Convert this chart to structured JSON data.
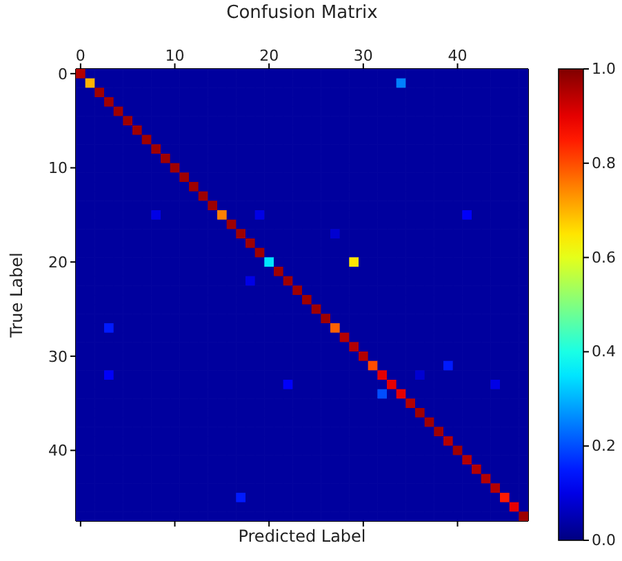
{
  "chart_data": {
    "type": "heatmap",
    "title": "Confusion Matrix",
    "xlabel": "Predicted Label",
    "ylabel": "True Label",
    "categories": [
      "0",
      null,
      null,
      null,
      null,
      null,
      null,
      null,
      null,
      null,
      "10",
      null,
      null,
      null,
      null,
      null,
      null,
      null,
      null,
      null,
      "20",
      null,
      null,
      null,
      null,
      null,
      null,
      null,
      null,
      null,
      "30",
      null,
      null,
      null,
      null,
      null,
      null,
      null,
      null,
      null,
      "40",
      null,
      null,
      null,
      null,
      null,
      null,
      null
    ],
    "y_categories": [
      "0",
      null,
      null,
      null,
      null,
      null,
      null,
      null,
      null,
      null,
      "10",
      null,
      null,
      null,
      null,
      null,
      null,
      null,
      null,
      null,
      "20",
      null,
      null,
      null,
      null,
      null,
      null,
      null,
      null,
      null,
      "30",
      null,
      null,
      null,
      null,
      null,
      null,
      null,
      null,
      null,
      "40",
      null,
      null,
      null,
      null,
      null,
      null,
      null
    ],
    "clim": [
      0,
      1
    ],
    "cticks": [
      {
        "value": 0,
        "label": "0.0"
      },
      {
        "value": 0.2,
        "label": "0.2"
      },
      {
        "value": 0.4,
        "label": "0.4"
      },
      {
        "value": 0.6,
        "label": "0.6"
      },
      {
        "value": 0.8,
        "label": "0.8"
      },
      {
        "value": 1,
        "label": "1.0"
      }
    ],
    "cells": [
      [
        0.95,
        0.03,
        0.03,
        0.03,
        0.03,
        0.03,
        0.03,
        0.03,
        0.03,
        0.03,
        0.03,
        0.03,
        0.03,
        0.03,
        0.03,
        0.03,
        0.03,
        0.03,
        0.03,
        0.03,
        0.03,
        0.03,
        0.03,
        0.03,
        0.03,
        0.03,
        0.03,
        0.03,
        0.03,
        0.03,
        0.03,
        0.03,
        0.03,
        0.03,
        0.03,
        0.03,
        0.03,
        0.03,
        0.03,
        0.03,
        0.03,
        0.03,
        0.03,
        0.03,
        0.03,
        0.03,
        0.03,
        0.03
      ],
      [
        0.03,
        0.7,
        0.03,
        0.03,
        0.03,
        0.03,
        0.03,
        0.03,
        0.03,
        0.03,
        0.03,
        0.03,
        0.03,
        0.03,
        0.03,
        0.03,
        0.03,
        0.03,
        0.03,
        0.03,
        0.03,
        0.03,
        0.03,
        0.03,
        0.03,
        0.03,
        0.03,
        0.03,
        0.03,
        0.03,
        0.03,
        0.03,
        0.03,
        0.03,
        0.25,
        0.03,
        0.03,
        0.03,
        0.03,
        0.03,
        0.03,
        0.03,
        0.03,
        0.03,
        0.03,
        0.03,
        0.03,
        0.03
      ],
      [
        0.03,
        0.03,
        0.97,
        0.03,
        0.03,
        0.03,
        0.03,
        0.03,
        0.03,
        0.03,
        0.03,
        0.03,
        0.03,
        0.03,
        0.03,
        0.03,
        0.03,
        0.03,
        0.03,
        0.03,
        0.03,
        0.03,
        0.03,
        0.03,
        0.03,
        0.03,
        0.03,
        0.03,
        0.03,
        0.03,
        0.03,
        0.03,
        0.03,
        0.03,
        0.03,
        0.03,
        0.03,
        0.03,
        0.03,
        0.03,
        0.03,
        0.03,
        0.03,
        0.03,
        0.03,
        0.03,
        0.03,
        0.03
      ],
      [
        0.03,
        0.03,
        0.03,
        0.97,
        0.03,
        0.03,
        0.03,
        0.03,
        0.03,
        0.03,
        0.03,
        0.03,
        0.03,
        0.03,
        0.03,
        0.03,
        0.03,
        0.03,
        0.03,
        0.03,
        0.03,
        0.03,
        0.03,
        0.03,
        0.03,
        0.03,
        0.03,
        0.03,
        0.03,
        0.03,
        0.03,
        0.03,
        0.03,
        0.03,
        0.03,
        0.03,
        0.03,
        0.03,
        0.03,
        0.03,
        0.03,
        0.03,
        0.03,
        0.03,
        0.03,
        0.03,
        0.03,
        0.03
      ],
      [
        0.03,
        0.03,
        0.03,
        0.03,
        0.97,
        0.03,
        0.03,
        0.03,
        0.03,
        0.03,
        0.03,
        0.03,
        0.03,
        0.03,
        0.03,
        0.03,
        0.03,
        0.03,
        0.03,
        0.03,
        0.03,
        0.03,
        0.03,
        0.03,
        0.03,
        0.03,
        0.03,
        0.03,
        0.03,
        0.03,
        0.03,
        0.03,
        0.03,
        0.03,
        0.03,
        0.03,
        0.03,
        0.03,
        0.03,
        0.03,
        0.03,
        0.03,
        0.03,
        0.03,
        0.03,
        0.03,
        0.03,
        0.03
      ],
      [
        0.03,
        0.03,
        0.03,
        0.03,
        0.03,
        0.97,
        0.03,
        0.03,
        0.03,
        0.03,
        0.03,
        0.03,
        0.03,
        0.03,
        0.03,
        0.03,
        0.03,
        0.03,
        0.03,
        0.03,
        0.03,
        0.03,
        0.03,
        0.03,
        0.03,
        0.03,
        0.03,
        0.03,
        0.03,
        0.03,
        0.03,
        0.03,
        0.03,
        0.03,
        0.03,
        0.03,
        0.03,
        0.03,
        0.03,
        0.03,
        0.03,
        0.03,
        0.03,
        0.03,
        0.03,
        0.03,
        0.03,
        0.03
      ],
      [
        0.03,
        0.03,
        0.03,
        0.03,
        0.03,
        0.03,
        0.97,
        0.03,
        0.03,
        0.03,
        0.03,
        0.03,
        0.03,
        0.03,
        0.03,
        0.03,
        0.03,
        0.03,
        0.03,
        0.03,
        0.03,
        0.03,
        0.03,
        0.03,
        0.03,
        0.03,
        0.03,
        0.03,
        0.03,
        0.03,
        0.03,
        0.03,
        0.03,
        0.03,
        0.03,
        0.03,
        0.03,
        0.03,
        0.03,
        0.03,
        0.03,
        0.03,
        0.03,
        0.03,
        0.03,
        0.03,
        0.03,
        0.03
      ],
      [
        0.03,
        0.03,
        0.03,
        0.03,
        0.03,
        0.03,
        0.03,
        0.97,
        0.03,
        0.03,
        0.03,
        0.03,
        0.03,
        0.03,
        0.03,
        0.03,
        0.03,
        0.03,
        0.03,
        0.03,
        0.03,
        0.03,
        0.03,
        0.03,
        0.03,
        0.03,
        0.03,
        0.03,
        0.03,
        0.03,
        0.03,
        0.03,
        0.03,
        0.03,
        0.03,
        0.03,
        0.03,
        0.03,
        0.03,
        0.03,
        0.03,
        0.03,
        0.03,
        0.03,
        0.03,
        0.03,
        0.03,
        0.03
      ],
      [
        0.03,
        0.03,
        0.03,
        0.03,
        0.03,
        0.03,
        0.03,
        0.03,
        0.97,
        0.03,
        0.03,
        0.03,
        0.03,
        0.03,
        0.03,
        0.03,
        0.03,
        0.03,
        0.03,
        0.03,
        0.03,
        0.03,
        0.03,
        0.03,
        0.03,
        0.03,
        0.03,
        0.03,
        0.03,
        0.03,
        0.03,
        0.03,
        0.03,
        0.03,
        0.03,
        0.03,
        0.03,
        0.03,
        0.03,
        0.03,
        0.03,
        0.03,
        0.03,
        0.03,
        0.03,
        0.03,
        0.03,
        0.03
      ],
      [
        0.03,
        0.03,
        0.03,
        0.03,
        0.03,
        0.03,
        0.03,
        0.03,
        0.03,
        0.97,
        0.03,
        0.03,
        0.03,
        0.03,
        0.03,
        0.03,
        0.03,
        0.03,
        0.03,
        0.03,
        0.03,
        0.03,
        0.03,
        0.03,
        0.03,
        0.03,
        0.03,
        0.03,
        0.03,
        0.03,
        0.03,
        0.03,
        0.03,
        0.03,
        0.03,
        0.03,
        0.03,
        0.03,
        0.03,
        0.03,
        0.03,
        0.03,
        0.03,
        0.03,
        0.03,
        0.03,
        0.03,
        0.03
      ],
      [
        0.03,
        0.03,
        0.03,
        0.03,
        0.03,
        0.03,
        0.03,
        0.03,
        0.03,
        0.03,
        0.97,
        0.03,
        0.03,
        0.03,
        0.03,
        0.03,
        0.03,
        0.03,
        0.03,
        0.03,
        0.03,
        0.03,
        0.03,
        0.03,
        0.03,
        0.03,
        0.03,
        0.03,
        0.03,
        0.03,
        0.03,
        0.03,
        0.03,
        0.03,
        0.03,
        0.03,
        0.03,
        0.03,
        0.03,
        0.03,
        0.03,
        0.03,
        0.03,
        0.03,
        0.03,
        0.03,
        0.03,
        0.03
      ],
      [
        0.03,
        0.03,
        0.03,
        0.03,
        0.03,
        0.03,
        0.03,
        0.03,
        0.03,
        0.03,
        0.03,
        0.97,
        0.03,
        0.03,
        0.03,
        0.03,
        0.03,
        0.03,
        0.03,
        0.03,
        0.03,
        0.03,
        0.03,
        0.03,
        0.03,
        0.03,
        0.03,
        0.03,
        0.03,
        0.03,
        0.03,
        0.03,
        0.03,
        0.03,
        0.03,
        0.03,
        0.03,
        0.03,
        0.03,
        0.03,
        0.03,
        0.03,
        0.03,
        0.03,
        0.03,
        0.03,
        0.03,
        0.03
      ],
      [
        0.03,
        0.03,
        0.03,
        0.03,
        0.03,
        0.03,
        0.03,
        0.03,
        0.03,
        0.03,
        0.03,
        0.03,
        0.97,
        0.03,
        0.03,
        0.03,
        0.03,
        0.03,
        0.03,
        0.03,
        0.03,
        0.03,
        0.03,
        0.03,
        0.03,
        0.03,
        0.03,
        0.03,
        0.03,
        0.03,
        0.03,
        0.03,
        0.03,
        0.03,
        0.03,
        0.03,
        0.03,
        0.03,
        0.03,
        0.03,
        0.03,
        0.03,
        0.03,
        0.03,
        0.03,
        0.03,
        0.03,
        0.03
      ],
      [
        0.03,
        0.03,
        0.03,
        0.03,
        0.03,
        0.03,
        0.03,
        0.03,
        0.03,
        0.03,
        0.03,
        0.03,
        0.03,
        0.97,
        0.03,
        0.03,
        0.03,
        0.03,
        0.03,
        0.03,
        0.03,
        0.03,
        0.03,
        0.03,
        0.03,
        0.03,
        0.03,
        0.03,
        0.03,
        0.03,
        0.03,
        0.03,
        0.03,
        0.03,
        0.03,
        0.03,
        0.03,
        0.03,
        0.03,
        0.03,
        0.03,
        0.03,
        0.03,
        0.03,
        0.03,
        0.03,
        0.03,
        0.03
      ],
      [
        0.03,
        0.03,
        0.03,
        0.03,
        0.03,
        0.03,
        0.03,
        0.03,
        0.03,
        0.03,
        0.03,
        0.03,
        0.03,
        0.03,
        0.97,
        0.03,
        0.03,
        0.03,
        0.03,
        0.03,
        0.03,
        0.03,
        0.03,
        0.03,
        0.03,
        0.03,
        0.03,
        0.03,
        0.03,
        0.03,
        0.03,
        0.03,
        0.03,
        0.03,
        0.03,
        0.03,
        0.03,
        0.03,
        0.03,
        0.03,
        0.03,
        0.03,
        0.03,
        0.03,
        0.03,
        0.03,
        0.03,
        0.03
      ],
      [
        0.03,
        0.03,
        0.03,
        0.03,
        0.03,
        0.03,
        0.03,
        0.03,
        0.1,
        0.03,
        0.03,
        0.03,
        0.03,
        0.03,
        0.03,
        0.75,
        0.03,
        0.03,
        0.03,
        0.1,
        0.03,
        0.03,
        0.03,
        0.03,
        0.03,
        0.03,
        0.03,
        0.03,
        0.03,
        0.03,
        0.03,
        0.03,
        0.03,
        0.03,
        0.03,
        0.03,
        0.03,
        0.03,
        0.03,
        0.03,
        0.03,
        0.12,
        0.03,
        0.03,
        0.03,
        0.03,
        0.03,
        0.03
      ],
      [
        0.03,
        0.03,
        0.03,
        0.03,
        0.03,
        0.03,
        0.03,
        0.03,
        0.03,
        0.03,
        0.03,
        0.03,
        0.03,
        0.03,
        0.03,
        0.03,
        0.97,
        0.03,
        0.03,
        0.03,
        0.03,
        0.03,
        0.03,
        0.03,
        0.03,
        0.03,
        0.03,
        0.03,
        0.03,
        0.03,
        0.03,
        0.03,
        0.03,
        0.03,
        0.03,
        0.03,
        0.03,
        0.03,
        0.03,
        0.03,
        0.03,
        0.03,
        0.03,
        0.03,
        0.03,
        0.03,
        0.03,
        0.03
      ],
      [
        0.03,
        0.03,
        0.03,
        0.03,
        0.03,
        0.03,
        0.03,
        0.03,
        0.03,
        0.03,
        0.03,
        0.03,
        0.03,
        0.03,
        0.03,
        0.03,
        0.03,
        0.97,
        0.03,
        0.03,
        0.03,
        0.03,
        0.03,
        0.03,
        0.03,
        0.03,
        0.03,
        0.08,
        0.03,
        0.03,
        0.03,
        0.03,
        0.03,
        0.03,
        0.03,
        0.03,
        0.03,
        0.03,
        0.03,
        0.03,
        0.03,
        0.03,
        0.03,
        0.03,
        0.03,
        0.03,
        0.03,
        0.03
      ],
      [
        0.03,
        0.03,
        0.03,
        0.03,
        0.03,
        0.03,
        0.03,
        0.03,
        0.03,
        0.03,
        0.03,
        0.03,
        0.03,
        0.03,
        0.03,
        0.03,
        0.03,
        0.03,
        0.97,
        0.03,
        0.03,
        0.03,
        0.03,
        0.03,
        0.03,
        0.03,
        0.03,
        0.03,
        0.03,
        0.03,
        0.03,
        0.03,
        0.03,
        0.03,
        0.03,
        0.03,
        0.03,
        0.03,
        0.03,
        0.03,
        0.03,
        0.03,
        0.03,
        0.03,
        0.03,
        0.03,
        0.03,
        0.03
      ],
      [
        0.03,
        0.03,
        0.03,
        0.03,
        0.03,
        0.03,
        0.03,
        0.03,
        0.03,
        0.03,
        0.03,
        0.03,
        0.03,
        0.03,
        0.03,
        0.03,
        0.03,
        0.03,
        0.03,
        0.97,
        0.03,
        0.03,
        0.03,
        0.03,
        0.03,
        0.03,
        0.03,
        0.03,
        0.03,
        0.03,
        0.03,
        0.03,
        0.03,
        0.03,
        0.03,
        0.03,
        0.03,
        0.03,
        0.03,
        0.03,
        0.03,
        0.03,
        0.03,
        0.03,
        0.03,
        0.03,
        0.03,
        0.03
      ],
      [
        0.03,
        0.03,
        0.03,
        0.03,
        0.03,
        0.03,
        0.03,
        0.03,
        0.03,
        0.03,
        0.03,
        0.03,
        0.03,
        0.03,
        0.03,
        0.03,
        0.03,
        0.03,
        0.03,
        0.03,
        0.35,
        0.03,
        0.03,
        0.03,
        0.03,
        0.03,
        0.03,
        0.03,
        0.03,
        0.65,
        0.03,
        0.03,
        0.03,
        0.03,
        0.03,
        0.03,
        0.03,
        0.03,
        0.03,
        0.03,
        0.03,
        0.03,
        0.03,
        0.03,
        0.03,
        0.03,
        0.03,
        0.03
      ],
      [
        0.03,
        0.03,
        0.03,
        0.03,
        0.03,
        0.03,
        0.03,
        0.03,
        0.03,
        0.03,
        0.03,
        0.03,
        0.03,
        0.03,
        0.03,
        0.03,
        0.03,
        0.03,
        0.03,
        0.03,
        0.03,
        0.97,
        0.03,
        0.03,
        0.03,
        0.03,
        0.03,
        0.03,
        0.03,
        0.03,
        0.03,
        0.03,
        0.03,
        0.03,
        0.03,
        0.03,
        0.03,
        0.03,
        0.03,
        0.03,
        0.03,
        0.03,
        0.03,
        0.03,
        0.03,
        0.03,
        0.03,
        0.03
      ],
      [
        0.03,
        0.03,
        0.03,
        0.03,
        0.03,
        0.03,
        0.03,
        0.03,
        0.03,
        0.03,
        0.03,
        0.03,
        0.03,
        0.03,
        0.03,
        0.03,
        0.03,
        0.03,
        0.1,
        0.03,
        0.03,
        0.03,
        0.97,
        0.03,
        0.03,
        0.03,
        0.03,
        0.03,
        0.03,
        0.03,
        0.03,
        0.03,
        0.03,
        0.03,
        0.03,
        0.03,
        0.03,
        0.03,
        0.03,
        0.03,
        0.03,
        0.03,
        0.03,
        0.03,
        0.03,
        0.03,
        0.03,
        0.03
      ],
      [
        0.03,
        0.03,
        0.03,
        0.03,
        0.03,
        0.03,
        0.03,
        0.03,
        0.03,
        0.03,
        0.03,
        0.03,
        0.03,
        0.03,
        0.03,
        0.03,
        0.03,
        0.03,
        0.03,
        0.03,
        0.03,
        0.03,
        0.03,
        0.97,
        0.03,
        0.03,
        0.03,
        0.03,
        0.03,
        0.03,
        0.03,
        0.03,
        0.03,
        0.03,
        0.03,
        0.03,
        0.03,
        0.03,
        0.03,
        0.03,
        0.03,
        0.03,
        0.03,
        0.03,
        0.03,
        0.03,
        0.03,
        0.03
      ],
      [
        0.03,
        0.03,
        0.03,
        0.03,
        0.03,
        0.03,
        0.03,
        0.03,
        0.03,
        0.03,
        0.03,
        0.03,
        0.03,
        0.03,
        0.03,
        0.03,
        0.03,
        0.03,
        0.03,
        0.03,
        0.03,
        0.03,
        0.03,
        0.03,
        0.97,
        0.03,
        0.03,
        0.03,
        0.03,
        0.03,
        0.03,
        0.03,
        0.03,
        0.03,
        0.03,
        0.03,
        0.03,
        0.03,
        0.03,
        0.03,
        0.03,
        0.03,
        0.03,
        0.03,
        0.03,
        0.03,
        0.03,
        0.03
      ],
      [
        0.03,
        0.03,
        0.03,
        0.03,
        0.03,
        0.03,
        0.03,
        0.03,
        0.03,
        0.03,
        0.03,
        0.03,
        0.03,
        0.03,
        0.03,
        0.03,
        0.03,
        0.03,
        0.03,
        0.03,
        0.03,
        0.03,
        0.03,
        0.03,
        0.03,
        0.97,
        0.03,
        0.03,
        0.03,
        0.03,
        0.03,
        0.03,
        0.03,
        0.03,
        0.03,
        0.03,
        0.03,
        0.03,
        0.03,
        0.03,
        0.03,
        0.03,
        0.03,
        0.03,
        0.03,
        0.03,
        0.03,
        0.03
      ],
      [
        0.03,
        0.03,
        0.03,
        0.03,
        0.03,
        0.03,
        0.03,
        0.03,
        0.03,
        0.03,
        0.03,
        0.03,
        0.03,
        0.03,
        0.03,
        0.03,
        0.03,
        0.03,
        0.03,
        0.03,
        0.03,
        0.03,
        0.03,
        0.03,
        0.03,
        0.03,
        0.97,
        0.03,
        0.03,
        0.03,
        0.03,
        0.03,
        0.03,
        0.03,
        0.03,
        0.03,
        0.03,
        0.03,
        0.03,
        0.03,
        0.03,
        0.03,
        0.03,
        0.03,
        0.03,
        0.03,
        0.03,
        0.03
      ],
      [
        0.03,
        0.03,
        0.03,
        0.15,
        0.03,
        0.03,
        0.03,
        0.03,
        0.03,
        0.03,
        0.03,
        0.03,
        0.03,
        0.03,
        0.03,
        0.03,
        0.03,
        0.03,
        0.03,
        0.03,
        0.03,
        0.03,
        0.03,
        0.03,
        0.03,
        0.03,
        0.03,
        0.78,
        0.03,
        0.03,
        0.03,
        0.03,
        0.03,
        0.03,
        0.03,
        0.03,
        0.03,
        0.03,
        0.03,
        0.03,
        0.03,
        0.03,
        0.03,
        0.03,
        0.03,
        0.03,
        0.03,
        0.03
      ],
      [
        0.03,
        0.03,
        0.03,
        0.03,
        0.03,
        0.03,
        0.03,
        0.03,
        0.03,
        0.03,
        0.03,
        0.03,
        0.03,
        0.03,
        0.03,
        0.03,
        0.03,
        0.03,
        0.03,
        0.03,
        0.03,
        0.03,
        0.03,
        0.03,
        0.03,
        0.03,
        0.03,
        0.03,
        0.95,
        0.03,
        0.03,
        0.03,
        0.03,
        0.03,
        0.03,
        0.03,
        0.03,
        0.03,
        0.03,
        0.03,
        0.03,
        0.03,
        0.03,
        0.03,
        0.03,
        0.03,
        0.03,
        0.03
      ],
      [
        0.03,
        0.03,
        0.03,
        0.03,
        0.03,
        0.03,
        0.03,
        0.03,
        0.03,
        0.03,
        0.03,
        0.03,
        0.03,
        0.03,
        0.03,
        0.03,
        0.03,
        0.03,
        0.03,
        0.03,
        0.03,
        0.03,
        0.03,
        0.03,
        0.03,
        0.03,
        0.03,
        0.03,
        0.03,
        0.95,
        0.03,
        0.03,
        0.03,
        0.03,
        0.03,
        0.03,
        0.03,
        0.03,
        0.03,
        0.03,
        0.03,
        0.03,
        0.03,
        0.03,
        0.03,
        0.03,
        0.03,
        0.03
      ],
      [
        0.03,
        0.03,
        0.03,
        0.03,
        0.03,
        0.03,
        0.03,
        0.03,
        0.03,
        0.03,
        0.03,
        0.03,
        0.03,
        0.03,
        0.03,
        0.03,
        0.03,
        0.03,
        0.03,
        0.03,
        0.03,
        0.03,
        0.03,
        0.03,
        0.03,
        0.03,
        0.03,
        0.03,
        0.03,
        0.03,
        0.95,
        0.03,
        0.03,
        0.03,
        0.03,
        0.03,
        0.03,
        0.03,
        0.03,
        0.03,
        0.03,
        0.03,
        0.03,
        0.03,
        0.03,
        0.03,
        0.03,
        0.03
      ],
      [
        0.03,
        0.03,
        0.03,
        0.03,
        0.03,
        0.03,
        0.03,
        0.03,
        0.03,
        0.03,
        0.03,
        0.03,
        0.03,
        0.03,
        0.03,
        0.03,
        0.03,
        0.03,
        0.03,
        0.03,
        0.03,
        0.03,
        0.03,
        0.03,
        0.03,
        0.03,
        0.03,
        0.03,
        0.03,
        0.03,
        0.03,
        0.8,
        0.03,
        0.03,
        0.03,
        0.03,
        0.03,
        0.03,
        0.03,
        0.15,
        0.03,
        0.03,
        0.03,
        0.03,
        0.03,
        0.03,
        0.03,
        0.03
      ],
      [
        0.03,
        0.03,
        0.03,
        0.12,
        0.03,
        0.03,
        0.03,
        0.03,
        0.03,
        0.03,
        0.03,
        0.03,
        0.03,
        0.03,
        0.03,
        0.03,
        0.03,
        0.03,
        0.03,
        0.03,
        0.03,
        0.03,
        0.03,
        0.03,
        0.03,
        0.03,
        0.03,
        0.03,
        0.03,
        0.03,
        0.03,
        0.03,
        0.9,
        0.03,
        0.03,
        0.03,
        0.08,
        0.03,
        0.03,
        0.03,
        0.03,
        0.03,
        0.03,
        0.03,
        0.03,
        0.03,
        0.03,
        0.03
      ],
      [
        0.03,
        0.03,
        0.03,
        0.03,
        0.03,
        0.03,
        0.03,
        0.03,
        0.03,
        0.03,
        0.03,
        0.03,
        0.03,
        0.03,
        0.03,
        0.03,
        0.03,
        0.03,
        0.03,
        0.03,
        0.03,
        0.03,
        0.12,
        0.03,
        0.03,
        0.03,
        0.03,
        0.03,
        0.03,
        0.03,
        0.03,
        0.03,
        0.03,
        0.9,
        0.03,
        0.03,
        0.03,
        0.03,
        0.03,
        0.03,
        0.03,
        0.03,
        0.03,
        0.03,
        0.1,
        0.03,
        0.03,
        0.03
      ],
      [
        0.03,
        0.03,
        0.03,
        0.03,
        0.03,
        0.03,
        0.03,
        0.03,
        0.03,
        0.03,
        0.03,
        0.03,
        0.03,
        0.03,
        0.03,
        0.03,
        0.03,
        0.03,
        0.03,
        0.03,
        0.03,
        0.03,
        0.03,
        0.03,
        0.03,
        0.03,
        0.03,
        0.03,
        0.03,
        0.03,
        0.03,
        0.03,
        0.2,
        0.03,
        0.9,
        0.03,
        0.03,
        0.03,
        0.03,
        0.03,
        0.03,
        0.03,
        0.03,
        0.03,
        0.03,
        0.03,
        0.03,
        0.03
      ],
      [
        0.03,
        0.03,
        0.03,
        0.03,
        0.03,
        0.03,
        0.03,
        0.03,
        0.03,
        0.03,
        0.03,
        0.03,
        0.03,
        0.03,
        0.03,
        0.03,
        0.03,
        0.03,
        0.03,
        0.03,
        0.03,
        0.03,
        0.03,
        0.03,
        0.03,
        0.03,
        0.03,
        0.03,
        0.03,
        0.03,
        0.03,
        0.03,
        0.03,
        0.03,
        0.03,
        0.95,
        0.03,
        0.03,
        0.03,
        0.03,
        0.03,
        0.03,
        0.03,
        0.03,
        0.03,
        0.03,
        0.03,
        0.03
      ],
      [
        0.03,
        0.03,
        0.03,
        0.03,
        0.03,
        0.03,
        0.03,
        0.03,
        0.03,
        0.03,
        0.03,
        0.03,
        0.03,
        0.03,
        0.03,
        0.03,
        0.03,
        0.03,
        0.03,
        0.03,
        0.03,
        0.03,
        0.03,
        0.03,
        0.03,
        0.03,
        0.03,
        0.03,
        0.03,
        0.03,
        0.03,
        0.03,
        0.03,
        0.03,
        0.03,
        0.03,
        0.97,
        0.03,
        0.03,
        0.03,
        0.03,
        0.03,
        0.03,
        0.03,
        0.03,
        0.03,
        0.03,
        0.03
      ],
      [
        0.03,
        0.03,
        0.03,
        0.03,
        0.03,
        0.03,
        0.03,
        0.03,
        0.03,
        0.03,
        0.03,
        0.03,
        0.03,
        0.03,
        0.03,
        0.03,
        0.03,
        0.03,
        0.03,
        0.03,
        0.03,
        0.03,
        0.03,
        0.03,
        0.03,
        0.03,
        0.03,
        0.03,
        0.03,
        0.03,
        0.03,
        0.03,
        0.03,
        0.03,
        0.03,
        0.03,
        0.03,
        0.97,
        0.03,
        0.03,
        0.03,
        0.03,
        0.03,
        0.03,
        0.03,
        0.03,
        0.03,
        0.03
      ],
      [
        0.03,
        0.03,
        0.03,
        0.03,
        0.03,
        0.03,
        0.03,
        0.03,
        0.03,
        0.03,
        0.03,
        0.03,
        0.03,
        0.03,
        0.03,
        0.03,
        0.03,
        0.03,
        0.03,
        0.03,
        0.03,
        0.03,
        0.03,
        0.03,
        0.03,
        0.03,
        0.03,
        0.03,
        0.03,
        0.03,
        0.03,
        0.03,
        0.03,
        0.03,
        0.03,
        0.03,
        0.03,
        0.03,
        0.97,
        0.03,
        0.03,
        0.03,
        0.03,
        0.03,
        0.03,
        0.03,
        0.03,
        0.03
      ],
      [
        0.03,
        0.03,
        0.03,
        0.03,
        0.03,
        0.03,
        0.03,
        0.03,
        0.03,
        0.03,
        0.03,
        0.03,
        0.03,
        0.03,
        0.03,
        0.03,
        0.03,
        0.03,
        0.03,
        0.03,
        0.03,
        0.03,
        0.03,
        0.03,
        0.03,
        0.03,
        0.03,
        0.03,
        0.03,
        0.03,
        0.03,
        0.03,
        0.03,
        0.03,
        0.03,
        0.03,
        0.03,
        0.03,
        0.03,
        0.95,
        0.03,
        0.03,
        0.03,
        0.03,
        0.03,
        0.03,
        0.03,
        0.03
      ],
      [
        0.03,
        0.03,
        0.03,
        0.03,
        0.03,
        0.03,
        0.03,
        0.03,
        0.03,
        0.03,
        0.03,
        0.03,
        0.03,
        0.03,
        0.03,
        0.03,
        0.03,
        0.03,
        0.03,
        0.03,
        0.03,
        0.03,
        0.03,
        0.03,
        0.03,
        0.03,
        0.03,
        0.03,
        0.03,
        0.03,
        0.03,
        0.03,
        0.03,
        0.03,
        0.03,
        0.03,
        0.03,
        0.03,
        0.03,
        0.03,
        0.97,
        0.03,
        0.03,
        0.03,
        0.03,
        0.03,
        0.03,
        0.03
      ],
      [
        0.03,
        0.03,
        0.03,
        0.03,
        0.03,
        0.03,
        0.03,
        0.03,
        0.03,
        0.03,
        0.03,
        0.03,
        0.03,
        0.03,
        0.03,
        0.03,
        0.03,
        0.03,
        0.03,
        0.03,
        0.03,
        0.03,
        0.03,
        0.03,
        0.03,
        0.03,
        0.03,
        0.03,
        0.03,
        0.03,
        0.03,
        0.03,
        0.03,
        0.03,
        0.03,
        0.03,
        0.03,
        0.03,
        0.03,
        0.03,
        0.03,
        0.95,
        0.03,
        0.03,
        0.03,
        0.03,
        0.03,
        0.03
      ],
      [
        0.03,
        0.03,
        0.03,
        0.03,
        0.03,
        0.03,
        0.03,
        0.03,
        0.03,
        0.03,
        0.03,
        0.03,
        0.03,
        0.03,
        0.03,
        0.03,
        0.03,
        0.03,
        0.03,
        0.03,
        0.03,
        0.03,
        0.03,
        0.03,
        0.03,
        0.03,
        0.03,
        0.03,
        0.03,
        0.03,
        0.03,
        0.03,
        0.03,
        0.03,
        0.03,
        0.03,
        0.03,
        0.03,
        0.03,
        0.03,
        0.03,
        0.03,
        0.95,
        0.03,
        0.03,
        0.03,
        0.03,
        0.03
      ],
      [
        0.03,
        0.03,
        0.03,
        0.03,
        0.03,
        0.03,
        0.03,
        0.03,
        0.03,
        0.03,
        0.03,
        0.03,
        0.03,
        0.03,
        0.03,
        0.03,
        0.03,
        0.03,
        0.03,
        0.03,
        0.03,
        0.03,
        0.03,
        0.03,
        0.03,
        0.03,
        0.03,
        0.03,
        0.03,
        0.03,
        0.03,
        0.03,
        0.03,
        0.03,
        0.03,
        0.03,
        0.03,
        0.03,
        0.03,
        0.03,
        0.03,
        0.03,
        0.03,
        0.95,
        0.03,
        0.03,
        0.03,
        0.03
      ],
      [
        0.03,
        0.03,
        0.03,
        0.03,
        0.03,
        0.03,
        0.03,
        0.03,
        0.03,
        0.03,
        0.03,
        0.03,
        0.03,
        0.03,
        0.03,
        0.03,
        0.03,
        0.03,
        0.03,
        0.03,
        0.03,
        0.03,
        0.03,
        0.03,
        0.03,
        0.03,
        0.03,
        0.03,
        0.03,
        0.03,
        0.03,
        0.03,
        0.03,
        0.03,
        0.03,
        0.03,
        0.03,
        0.03,
        0.03,
        0.03,
        0.03,
        0.03,
        0.03,
        0.03,
        0.95,
        0.03,
        0.03,
        0.03
      ],
      [
        0.03,
        0.03,
        0.03,
        0.03,
        0.03,
        0.03,
        0.03,
        0.03,
        0.03,
        0.03,
        0.03,
        0.03,
        0.03,
        0.03,
        0.03,
        0.03,
        0.03,
        0.15,
        0.03,
        0.03,
        0.03,
        0.03,
        0.03,
        0.03,
        0.03,
        0.03,
        0.03,
        0.03,
        0.03,
        0.03,
        0.03,
        0.03,
        0.03,
        0.03,
        0.03,
        0.03,
        0.03,
        0.03,
        0.03,
        0.03,
        0.03,
        0.03,
        0.03,
        0.03,
        0.03,
        0.85,
        0.03,
        0.03
      ],
      [
        0.03,
        0.03,
        0.03,
        0.03,
        0.03,
        0.03,
        0.03,
        0.03,
        0.03,
        0.03,
        0.03,
        0.03,
        0.03,
        0.03,
        0.03,
        0.03,
        0.03,
        0.03,
        0.03,
        0.03,
        0.03,
        0.03,
        0.03,
        0.03,
        0.03,
        0.03,
        0.03,
        0.03,
        0.03,
        0.03,
        0.03,
        0.03,
        0.03,
        0.03,
        0.03,
        0.03,
        0.03,
        0.03,
        0.03,
        0.03,
        0.03,
        0.03,
        0.03,
        0.03,
        0.03,
        0.03,
        0.9,
        0.03
      ],
      [
        0.03,
        0.03,
        0.03,
        0.03,
        0.03,
        0.03,
        0.03,
        0.03,
        0.03,
        0.03,
        0.03,
        0.03,
        0.03,
        0.03,
        0.03,
        0.03,
        0.03,
        0.03,
        0.03,
        0.03,
        0.03,
        0.03,
        0.03,
        0.03,
        0.03,
        0.03,
        0.03,
        0.03,
        0.03,
        0.03,
        0.03,
        0.03,
        0.03,
        0.03,
        0.03,
        0.03,
        0.03,
        0.03,
        0.03,
        0.03,
        0.03,
        0.03,
        0.03,
        0.03,
        0.03,
        0.03,
        0.03,
        0.97
      ]
    ]
  }
}
